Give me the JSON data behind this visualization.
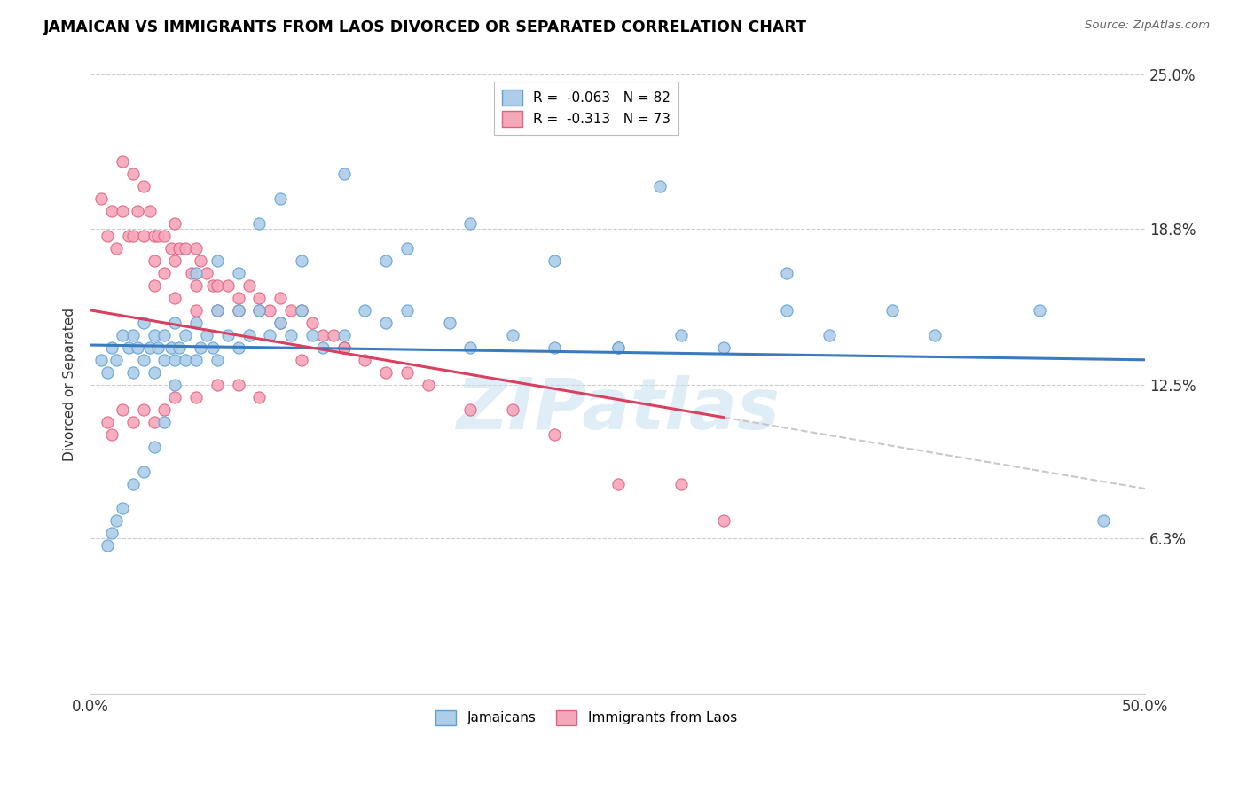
{
  "title": "JAMAICAN VS IMMIGRANTS FROM LAOS DIVORCED OR SEPARATED CORRELATION CHART",
  "source_text": "Source: ZipAtlas.com",
  "ylabel": "Divorced or Separated",
  "xlim": [
    0.0,
    0.5
  ],
  "ylim": [
    0.0,
    0.25
  ],
  "ytick_positions": [
    0.0,
    0.063,
    0.125,
    0.188,
    0.25
  ],
  "ytick_labels": [
    "",
    "6.3%",
    "12.5%",
    "18.8%",
    "25.0%"
  ],
  "series1_color": "#aecde8",
  "series2_color": "#f4a7b9",
  "series1_edge": "#5b9fd4",
  "series2_edge": "#e0607e",
  "trend1_color": "#3a7abf",
  "trend2_color": "#d94060",
  "trend_extend_color": "#c8c8c8",
  "watermark": "ZIPatlas",
  "r1": "-0.063",
  "n1": "82",
  "r2": "-0.313",
  "n2": "73",
  "legend1_label": "R =  -0.063   N = 82",
  "legend2_label": "R =  -0.313   N = 73",
  "bottom_legend1": "Jamaicans",
  "bottom_legend2": "Immigrants from Laos",
  "jamaicans_x": [
    0.005,
    0.008,
    0.01,
    0.012,
    0.015,
    0.018,
    0.02,
    0.02,
    0.022,
    0.025,
    0.025,
    0.028,
    0.03,
    0.03,
    0.032,
    0.035,
    0.035,
    0.038,
    0.04,
    0.04,
    0.042,
    0.045,
    0.045,
    0.05,
    0.05,
    0.052,
    0.055,
    0.058,
    0.06,
    0.06,
    0.065,
    0.07,
    0.07,
    0.075,
    0.08,
    0.085,
    0.09,
    0.095,
    0.1,
    0.105,
    0.11,
    0.12,
    0.13,
    0.14,
    0.15,
    0.17,
    0.18,
    0.2,
    0.22,
    0.25,
    0.28,
    0.3,
    0.33,
    0.35,
    0.38,
    0.4,
    0.45,
    0.48,
    0.27,
    0.33,
    0.25,
    0.22,
    0.18,
    0.15,
    0.14,
    0.12,
    0.1,
    0.09,
    0.08,
    0.07,
    0.06,
    0.05,
    0.04,
    0.035,
    0.03,
    0.025,
    0.02,
    0.015,
    0.012,
    0.01,
    0.008
  ],
  "jamaicans_y": [
    0.135,
    0.13,
    0.14,
    0.135,
    0.145,
    0.14,
    0.145,
    0.13,
    0.14,
    0.15,
    0.135,
    0.14,
    0.145,
    0.13,
    0.14,
    0.145,
    0.135,
    0.14,
    0.15,
    0.135,
    0.14,
    0.145,
    0.135,
    0.15,
    0.135,
    0.14,
    0.145,
    0.14,
    0.155,
    0.135,
    0.145,
    0.155,
    0.14,
    0.145,
    0.155,
    0.145,
    0.15,
    0.145,
    0.155,
    0.145,
    0.14,
    0.145,
    0.155,
    0.15,
    0.155,
    0.15,
    0.14,
    0.145,
    0.14,
    0.14,
    0.145,
    0.14,
    0.155,
    0.145,
    0.155,
    0.145,
    0.155,
    0.07,
    0.205,
    0.17,
    0.14,
    0.175,
    0.19,
    0.18,
    0.175,
    0.21,
    0.175,
    0.2,
    0.19,
    0.17,
    0.175,
    0.17,
    0.125,
    0.11,
    0.1,
    0.09,
    0.085,
    0.075,
    0.07,
    0.065,
    0.06
  ],
  "laos_x": [
    0.005,
    0.008,
    0.01,
    0.012,
    0.015,
    0.015,
    0.018,
    0.02,
    0.02,
    0.022,
    0.025,
    0.025,
    0.028,
    0.03,
    0.03,
    0.032,
    0.035,
    0.035,
    0.038,
    0.04,
    0.04,
    0.042,
    0.045,
    0.048,
    0.05,
    0.05,
    0.052,
    0.055,
    0.058,
    0.06,
    0.065,
    0.07,
    0.075,
    0.08,
    0.085,
    0.09,
    0.095,
    0.1,
    0.105,
    0.11,
    0.115,
    0.12,
    0.13,
    0.14,
    0.15,
    0.16,
    0.18,
    0.2,
    0.22,
    0.25,
    0.28,
    0.3,
    0.12,
    0.1,
    0.08,
    0.07,
    0.06,
    0.05,
    0.04,
    0.035,
    0.03,
    0.025,
    0.02,
    0.015,
    0.01,
    0.008,
    0.03,
    0.04,
    0.05,
    0.06,
    0.07,
    0.08,
    0.09
  ],
  "laos_y": [
    0.2,
    0.185,
    0.195,
    0.18,
    0.215,
    0.195,
    0.185,
    0.21,
    0.185,
    0.195,
    0.205,
    0.185,
    0.195,
    0.185,
    0.175,
    0.185,
    0.185,
    0.17,
    0.18,
    0.19,
    0.175,
    0.18,
    0.18,
    0.17,
    0.18,
    0.165,
    0.175,
    0.17,
    0.165,
    0.165,
    0.165,
    0.16,
    0.165,
    0.16,
    0.155,
    0.16,
    0.155,
    0.155,
    0.15,
    0.145,
    0.145,
    0.14,
    0.135,
    0.13,
    0.13,
    0.125,
    0.115,
    0.115,
    0.105,
    0.085,
    0.085,
    0.07,
    0.14,
    0.135,
    0.12,
    0.125,
    0.125,
    0.12,
    0.12,
    0.115,
    0.11,
    0.115,
    0.11,
    0.115,
    0.105,
    0.11,
    0.165,
    0.16,
    0.155,
    0.155,
    0.155,
    0.155,
    0.15
  ]
}
